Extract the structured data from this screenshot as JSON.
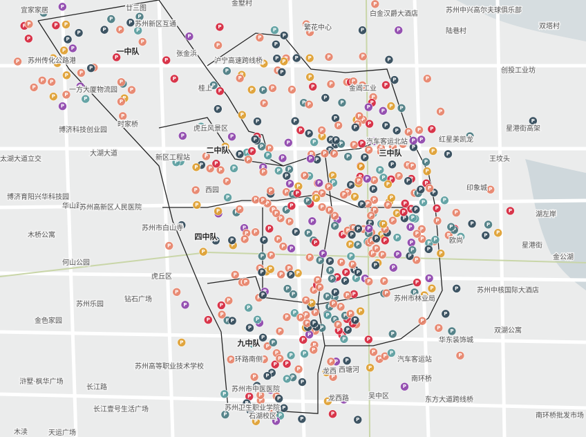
{
  "map": {
    "marker_label": "P",
    "place_labels": [
      "宜家家居",
      "廿三图",
      "金墅村",
      "苏州新区互通",
      "繁花中心",
      "白金汉爵大酒店",
      "苏州中兴高尔夫球俱乐部",
      "陆巷村",
      "双塔村",
      "苏州传化公路港",
      "一中队",
      "张金浜",
      "沪宁高速跨线桥",
      "创投工业坊",
      "一方大厦物流园",
      "桂上",
      "金阊工业",
      "博济科技创业园",
      "时家桥",
      "虎丘风景区",
      "星港街高架",
      "红星美凯龙",
      "二中队",
      "太湖大道立交",
      "大湖大道",
      "新区工程站",
      "汽车客运北站",
      "三中队",
      "王坟头",
      "印象城",
      "西园",
      "博济育阳兴华科技园",
      "华山路",
      "苏州高新区人民医院",
      "苏州市白山寺",
      "湖左岸",
      "四中队",
      "木桥公寓",
      "欧尚",
      "星港街",
      "何山公园",
      "金公湖",
      "虎丘区",
      "苏州乐园",
      "钻石广场",
      "苏州中核国际大酒店",
      "苏州市林业局",
      "金色家园",
      "华东装饰城",
      "双湖公寓",
      "九中队",
      "环路南侧",
      "苏州高等职业技术学校",
      "汽车客运站",
      "西塘河",
      "浒墅·枫华广场",
      "龙西",
      "南环桥",
      "长江路",
      "苏州市中医医院",
      "龙西路",
      "吴中区",
      "东方大道跨线桥",
      "长江壹号生活广场",
      "苏州卫生职业学院",
      "南环桥批发市场",
      "木渎",
      "天运广场",
      "石湖校区"
    ]
  }
}
